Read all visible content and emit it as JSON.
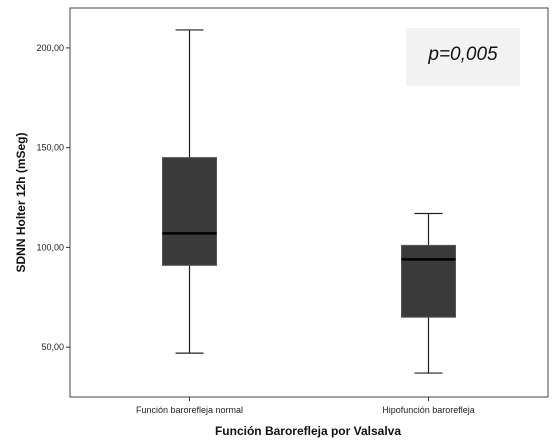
{
  "chart_data": {
    "type": "boxplot",
    "xlabel": "Función Barorefleja por Valsalva",
    "ylabel": "SDNN Holter 12h (mSeg)",
    "ylim": [
      25,
      220
    ],
    "yticks": [
      50,
      100,
      150,
      200
    ],
    "ytick_labels": [
      "50,00",
      "100,00",
      "150,00",
      "200,00"
    ],
    "categories": [
      "Función barorefleja normal",
      "Hipofunción barorefleja"
    ],
    "boxes": [
      {
        "category": "Función barorefleja normal",
        "min": 47,
        "q1": 91,
        "median": 107,
        "q3": 145,
        "max": 209
      },
      {
        "category": "Hipofunción barorefleja",
        "min": 37,
        "q1": 65,
        "median": 94,
        "q3": 101,
        "max": 117
      }
    ],
    "annotation": "p=0,005",
    "colors": {
      "box_fill": "#3a3a3a",
      "frame": "#444444",
      "annotation_bg": "#f2f2f2"
    },
    "grid": false
  }
}
